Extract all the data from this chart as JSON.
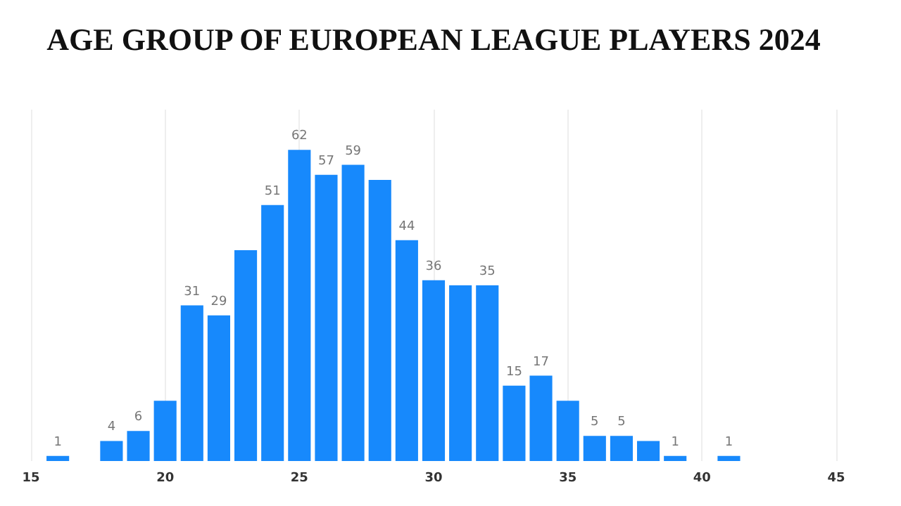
{
  "chart_data": {
    "type": "bar",
    "title": "AGE GROUP OF EUROPEAN LEAGUE PLAYERS 2024",
    "x": [
      16,
      17,
      18,
      19,
      20,
      21,
      22,
      23,
      24,
      25,
      26,
      27,
      28,
      29,
      30,
      31,
      32,
      33,
      34,
      35,
      36,
      37,
      38,
      39,
      40,
      41
    ],
    "values": [
      1,
      0,
      4,
      6,
      12,
      31,
      29,
      42,
      51,
      62,
      57,
      59,
      56,
      44,
      36,
      35,
      35,
      15,
      17,
      12,
      5,
      5,
      4,
      1,
      0,
      1
    ],
    "value_labels": [
      "1",
      null,
      "4",
      "6",
      null,
      "31",
      "29",
      null,
      "51",
      "62",
      "57",
      "59",
      null,
      "44",
      "36",
      null,
      "35",
      "15",
      "17",
      null,
      "5",
      "5",
      null,
      "1",
      null,
      "1"
    ],
    "color": "#1789fc",
    "xlim": [
      15,
      45
    ],
    "xticks": [
      15,
      20,
      25,
      30,
      35,
      40,
      45
    ],
    "grid": "x"
  }
}
